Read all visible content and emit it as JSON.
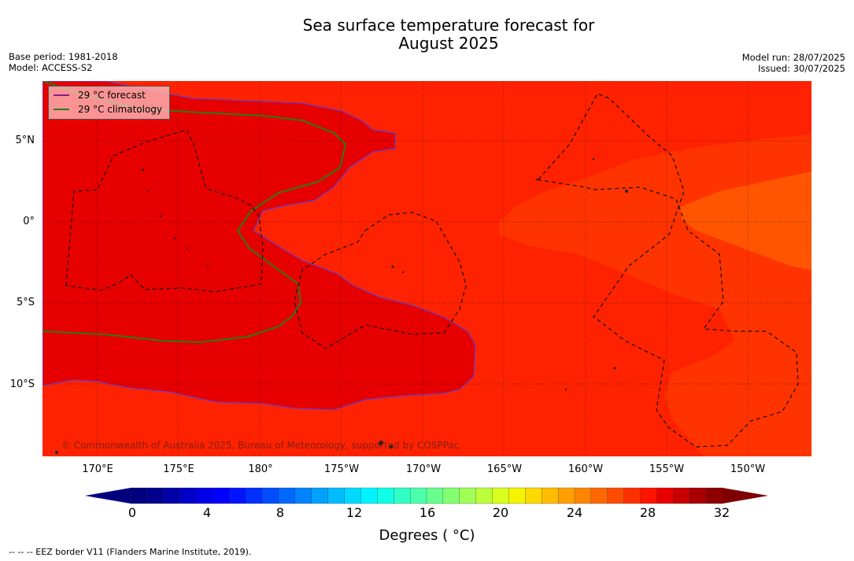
{
  "title": {
    "line1": "Sea surface temperature forecast for",
    "line2": "August 2025"
  },
  "meta": {
    "base_period": "Base period: 1981-2018",
    "model": "Model: ACCESS-S2",
    "model_run": "Model run: 28/07/2025",
    "issued": "Issued: 30/07/2025"
  },
  "legend": {
    "forecast_label": "29 °C  forecast",
    "climatology_label": "29 °C  climatology",
    "forecast_color": "#8a1a8a",
    "climatology_color": "#2a7a1a"
  },
  "axes": {
    "lat_labels": [
      "5°N",
      "0°",
      "5°S",
      "10°S"
    ],
    "lon_labels": [
      "170°E",
      "175°E",
      "180°",
      "175°W",
      "170°W",
      "165°W",
      "160°W",
      "155°W",
      "150°W"
    ]
  },
  "copyright": "© Commonwealth of Australia 2025, Bureau of Meteorology, supported by COSPPac",
  "colorbar": {
    "ticks": [
      "0",
      "4",
      "8",
      "12",
      "16",
      "20",
      "24",
      "28",
      "32"
    ],
    "label": "Degrees ( °C)",
    "colors": [
      "#00007f",
      "#00008f",
      "#0000a8",
      "#0000c8",
      "#0000e8",
      "#0000ff",
      "#0014ff",
      "#0030ff",
      "#004cff",
      "#0068ff",
      "#0084ff",
      "#00a0ff",
      "#00bcff",
      "#00d8ff",
      "#00f4ff",
      "#10ffe6",
      "#30ffc6",
      "#4cffaa",
      "#68ff8e",
      "#84ff72",
      "#a0ff56",
      "#bcff3a",
      "#d8ff1e",
      "#f4f400",
      "#ffd800",
      "#ffbc00",
      "#ffa000",
      "#ff8400",
      "#ff6800",
      "#ff4c00",
      "#ff3000",
      "#ff1400",
      "#e80000",
      "#c80000",
      "#a80000",
      "#8f0000"
    ],
    "under_color": "#00007f",
    "over_color": "#7f0000"
  },
  "map_colors": {
    "warm_30": "#e60000",
    "band_29": "#ff2200",
    "band_28": "#ff3300",
    "band_27": "#ff5500"
  },
  "footnote": "--  --  -- EEZ border V11 (Flanders Marine Institute, 2019)."
}
